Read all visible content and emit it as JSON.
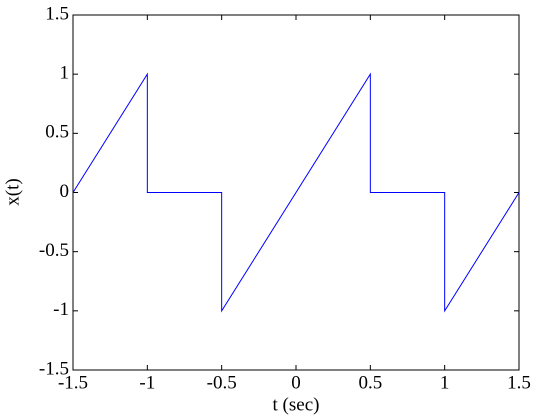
{
  "chart_data": {
    "type": "line",
    "xlabel": "t (sec)",
    "ylabel": "x(t)",
    "x": [
      -1.5,
      -1,
      -1,
      -0.5,
      -0.5,
      0.5,
      0.5,
      1,
      1,
      1.5
    ],
    "series": [
      {
        "name": "x(t)",
        "color": "#0000ff",
        "values": [
          0,
          1,
          0,
          0,
          -1,
          1,
          0,
          0,
          -1,
          0
        ]
      }
    ],
    "xlim": [
      -1.5,
      1.5
    ],
    "xticks": [
      -1.5,
      -1,
      -0.5,
      0,
      0.5,
      1,
      1.5
    ],
    "ylim": [
      -1.5,
      1.5
    ],
    "yticks": [
      -1.5,
      -1,
      -0.5,
      0,
      0.5,
      1,
      1.5
    ],
    "grid": false
  }
}
